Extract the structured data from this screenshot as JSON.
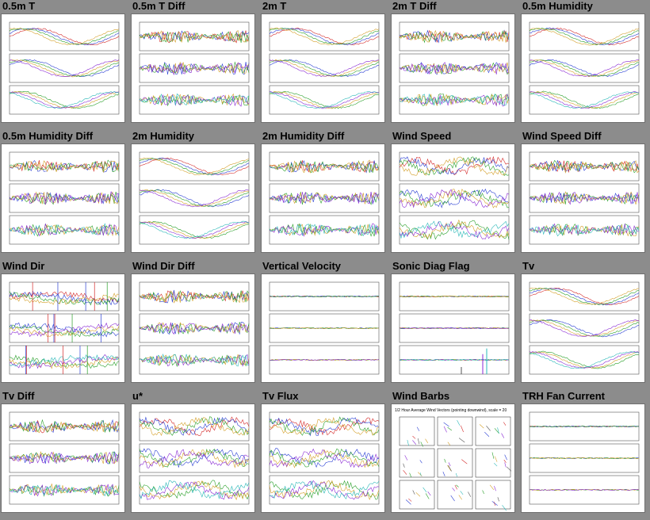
{
  "plots": [
    {
      "title": "0.5m T",
      "style": "t"
    },
    {
      "title": "0.5m T Diff",
      "style": "diff"
    },
    {
      "title": "2m T",
      "style": "t"
    },
    {
      "title": "2m T Diff",
      "style": "diff"
    },
    {
      "title": "0.5m Humidity",
      "style": "hum"
    },
    {
      "title": "0.5m Humidity Diff",
      "style": "diff"
    },
    {
      "title": "2m Humidity",
      "style": "hum"
    },
    {
      "title": "2m Humidity Diff",
      "style": "diff"
    },
    {
      "title": "Wind Speed",
      "style": "noisy"
    },
    {
      "title": "Wind Speed Diff",
      "style": "diff"
    },
    {
      "title": "Wind Dir",
      "style": "dir"
    },
    {
      "title": "Wind Dir Diff",
      "style": "diff"
    },
    {
      "title": "Vertical Velocity",
      "style": "flat"
    },
    {
      "title": "Sonic Diag Flag",
      "style": "flag"
    },
    {
      "title": "Tv",
      "style": "t"
    },
    {
      "title": "Tv Diff",
      "style": "diff"
    },
    {
      "title": "u*",
      "style": "noisy"
    },
    {
      "title": "Tv Flux",
      "style": "noisy"
    },
    {
      "title": "Wind Barbs",
      "style": "barbs"
    },
    {
      "title": "TRH Fan Current",
      "style": "flat"
    }
  ],
  "wind_barbs_caption": "1/2 Hour Average Wind Vectors (pointing downwind), scale = 20",
  "series_colors": [
    "#d42a2a",
    "#2a3fd4",
    "#2aa02a",
    "#d4a02a",
    "#8a2ad4",
    "#2ab8b8",
    "#555555"
  ]
}
